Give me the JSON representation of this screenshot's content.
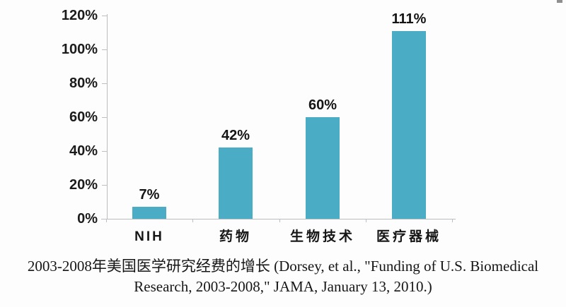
{
  "caption": {
    "line1": "2003-2008年美国医学研究经费的增长 (Dorsey, et al., \"Funding of U.S. Biomedical",
    "line2": "Research, 2003-2008,\" JAMA, January 13, 2010.)"
  },
  "chart_data": {
    "type": "bar",
    "title": "2003-2008年美国医学研究经费的增长",
    "source_note": "Dorsey, et al., \"Funding of U.S. Biomedical Research, 2003-2008,\" JAMA, January 13, 2010.",
    "categories": [
      "NIH",
      "药物",
      "生物技术",
      "医疗器械"
    ],
    "values": [
      7,
      42,
      60,
      111
    ],
    "data_labels": [
      "7%",
      "42%",
      "60%",
      "111%"
    ],
    "y_tick_labels": [
      "0%",
      "20%",
      "40%",
      "60%",
      "80%",
      "100%",
      "120%"
    ],
    "y_tick_values": [
      0,
      20,
      40,
      60,
      80,
      100,
      120
    ],
    "ylim": [
      0,
      120
    ],
    "xlabel": "",
    "ylabel": "",
    "grid": false,
    "legend": false,
    "bar_color": "#4bacc6",
    "axis_color": "#b9bdc0",
    "label_color": "#161616"
  }
}
